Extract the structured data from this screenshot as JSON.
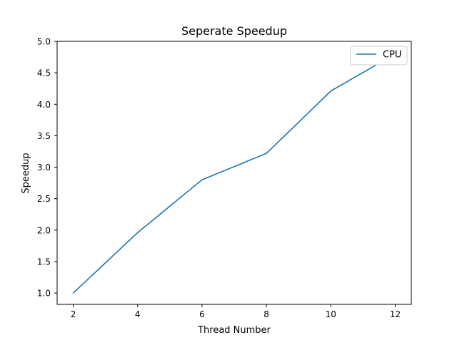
{
  "chart_data": {
    "type": "line",
    "title": "Seperate Speedup",
    "xlabel": "Thread Number",
    "ylabel": "Speedup",
    "x": [
      2,
      4,
      6,
      8,
      10,
      12
    ],
    "series": [
      {
        "name": "CPU",
        "values": [
          1.0,
          1.96,
          2.8,
          3.22,
          4.21,
          4.8
        ],
        "color": "#1f77b4"
      }
    ],
    "xlim": [
      1.5,
      12.5
    ],
    "ylim": [
      0.82,
      5.0
    ],
    "xticks": [
      2,
      4,
      6,
      8,
      10,
      12
    ],
    "xtick_labels": [
      "2",
      "4",
      "6",
      "8",
      "10",
      "12"
    ],
    "yticks": [
      1.0,
      1.5,
      2.0,
      2.5,
      3.0,
      3.5,
      4.0,
      4.5,
      5.0
    ],
    "ytick_labels": [
      "1.0",
      "1.5",
      "2.0",
      "2.5",
      "3.0",
      "3.5",
      "4.0",
      "4.5",
      "5.0"
    ],
    "grid": false,
    "legend_position": "top-right"
  }
}
